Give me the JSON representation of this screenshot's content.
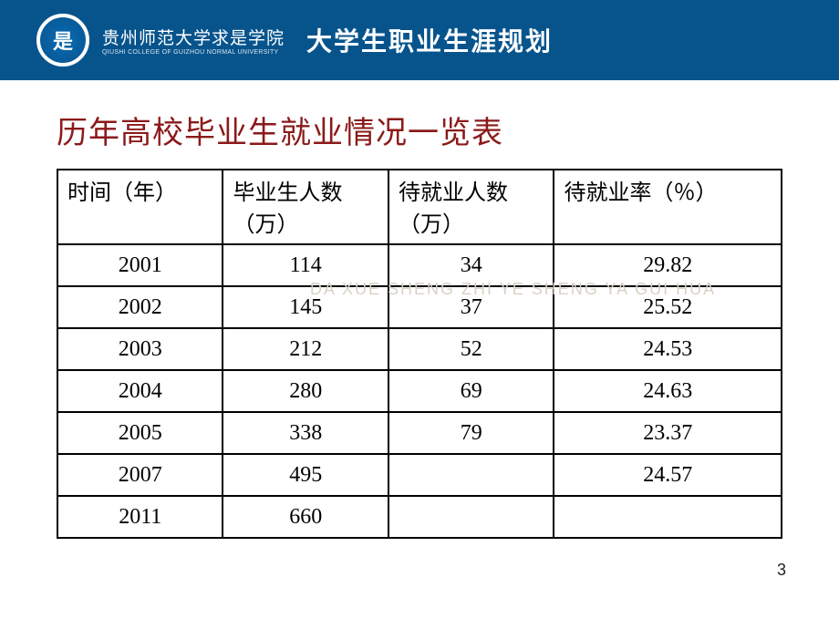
{
  "header": {
    "logo_char": "是",
    "institution_cn": "贵州师范大学求是学院",
    "institution_en": "QIUSHI COLLEGE OF GUIZHOU NORMAL UNIVERSITY",
    "course_title": "大学生职业生涯规划",
    "band_color": "#07548d"
  },
  "slide": {
    "title": "历年高校毕业生就业情况一览表",
    "title_color": "#8b1a1a",
    "watermark": "DA XUE SHENG ZHI YE SHENG YA GUI HUA",
    "page_number": "3"
  },
  "table": {
    "columns": [
      "时间（年）",
      "毕业生人数（万）",
      "待就业人数（万）",
      "待就业率（％）"
    ],
    "rows": [
      [
        "2001",
        "114",
        "34",
        "29.82"
      ],
      [
        "2002",
        "145",
        "37",
        "25.52"
      ],
      [
        "2003",
        "212",
        "52",
        "24.53"
      ],
      [
        "2004",
        "280",
        "69",
        "24.63"
      ],
      [
        "2005",
        "338",
        "79",
        "23.37"
      ],
      [
        "2007",
        "495",
        "",
        "24.57"
      ],
      [
        "2011",
        "660",
        "",
        ""
      ]
    ],
    "border_color": "#000000",
    "font_size": 24
  }
}
